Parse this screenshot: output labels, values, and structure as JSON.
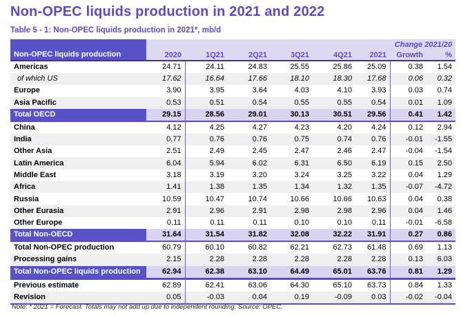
{
  "page": {
    "title": "Non-OPEC liquids production in 2021 and 2022",
    "subtitle": "Table 5 - 1: Non-OPEC liquids production in 2021*, mb/d",
    "note": "Note: * 2021 = Forecast. Totals may not add up due to independent rounding. Source: OPEC."
  },
  "colors": {
    "brand_purple": "#5a49c8",
    "header_block_purple": "#5951c8",
    "header_lavender": "#dcd9f1",
    "total_row_lavender": "#d9d4f1",
    "stripe_gray": "#efefef",
    "separator_line": "#6a5acd"
  },
  "table": {
    "corner_label": "Non-OPEC liquids production",
    "change_label": "Change 2021/20",
    "columns": [
      "2020",
      "1Q21",
      "2Q21",
      "3Q21",
      "4Q21",
      "2021",
      "Growth",
      "%"
    ],
    "rows": [
      {
        "label": "Americas",
        "variant": "region",
        "shaded": false,
        "values": [
          "24.71",
          "24.11",
          "24.83",
          "25.55",
          "25.86",
          "25.09",
          "0.38",
          "1.54"
        ]
      },
      {
        "label": "of which US",
        "variant": "sub",
        "shaded": true,
        "values": [
          "17.62",
          "16.64",
          "17.66",
          "18.10",
          "18.30",
          "17.68",
          "0.06",
          "0.32"
        ]
      },
      {
        "label": "Europe",
        "variant": "region",
        "shaded": false,
        "values": [
          "3.90",
          "3.95",
          "3.64",
          "4.03",
          "4.10",
          "3.93",
          "0.03",
          "0.74"
        ]
      },
      {
        "label": "Asia Pacific",
        "variant": "region",
        "shaded": true,
        "values": [
          "0.53",
          "0.51",
          "0.54",
          "0.55",
          "0.55",
          "0.54",
          "0.01",
          "1.09"
        ]
      },
      {
        "label": "Total OECD",
        "variant": "total",
        "shaded": false,
        "values": [
          "29.15",
          "28.56",
          "29.01",
          "30.13",
          "30.51",
          "29.56",
          "0.41",
          "1.42"
        ]
      },
      {
        "label": "China",
        "variant": "region",
        "shaded": false,
        "values": [
          "4.12",
          "4.25",
          "4.27",
          "4.23",
          "4.20",
          "4.24",
          "0.12",
          "2.94"
        ]
      },
      {
        "label": "India",
        "variant": "region",
        "shaded": true,
        "values": [
          "0.77",
          "0.76",
          "0.76",
          "0.75",
          "0.74",
          "0.76",
          "-0.01",
          "-1.55"
        ]
      },
      {
        "label": "Other Asia",
        "variant": "region",
        "shaded": false,
        "values": [
          "2.51",
          "2.49",
          "2.45",
          "2.47",
          "2.46",
          "2.47",
          "-0.04",
          "-1.54"
        ]
      },
      {
        "label": "Latin America",
        "variant": "region",
        "shaded": true,
        "values": [
          "6.04",
          "5.94",
          "6.02",
          "6.31",
          "6.50",
          "6.19",
          "0.15",
          "2.50"
        ]
      },
      {
        "label": "Middle East",
        "variant": "region",
        "shaded": false,
        "values": [
          "3.18",
          "3.19",
          "3.20",
          "3.24",
          "3.25",
          "3.22",
          "0.04",
          "1.29"
        ]
      },
      {
        "label": "Africa",
        "variant": "region",
        "shaded": true,
        "values": [
          "1.41",
          "1.38",
          "1.35",
          "1.34",
          "1.32",
          "1.35",
          "-0.07",
          "-4.72"
        ]
      },
      {
        "label": "Russia",
        "variant": "region",
        "shaded": false,
        "values": [
          "10.59",
          "10.47",
          "10.74",
          "10.66",
          "10.66",
          "10.63",
          "0.04",
          "0.38"
        ]
      },
      {
        "label": "Other Eurasia",
        "variant": "region",
        "shaded": true,
        "values": [
          "2.91",
          "2.96",
          "2.91",
          "2.98",
          "2.98",
          "2.96",
          "0.04",
          "1.46"
        ]
      },
      {
        "label": "Other Europe",
        "variant": "region",
        "shaded": false,
        "values": [
          "0.11",
          "0.11",
          "0.11",
          "0.10",
          "0.10",
          "0.11",
          "-0.01",
          "-6.58"
        ]
      },
      {
        "label": "Total Non-OECD",
        "variant": "total",
        "shaded": false,
        "values": [
          "31.64",
          "31.54",
          "31.82",
          "32.08",
          "32.22",
          "31.91",
          "0.27",
          "0.86"
        ]
      },
      {
        "label": "Total Non-OPEC production",
        "variant": "region",
        "shaded": false,
        "values": [
          "60.79",
          "60.10",
          "60.82",
          "62.21",
          "62.73",
          "61.48",
          "0.69",
          "1.13"
        ]
      },
      {
        "label": "Processing gains",
        "variant": "region",
        "shaded": true,
        "values": [
          "2.15",
          "2.28",
          "2.28",
          "2.28",
          "2.28",
          "2.28",
          "0.13",
          "6.03"
        ]
      },
      {
        "label": "Total Non-OPEC liquids production",
        "variant": "grand-total",
        "shaded": false,
        "values": [
          "62.94",
          "62.38",
          "63.10",
          "64.49",
          "65.01",
          "63.76",
          "0.81",
          "1.29"
        ]
      },
      {
        "label": "Previous estimate",
        "variant": "region",
        "shaded": false,
        "values": [
          "62.89",
          "62.41",
          "63.06",
          "64.30",
          "65.10",
          "63.73",
          "0.84",
          "1.33"
        ]
      },
      {
        "label": "Revision",
        "variant": "region",
        "shaded": true,
        "values": [
          "0.05",
          "-0.03",
          "0.04",
          "0.19",
          "-0.09",
          "0.03",
          "-0.02",
          "-0.04"
        ]
      }
    ]
  }
}
